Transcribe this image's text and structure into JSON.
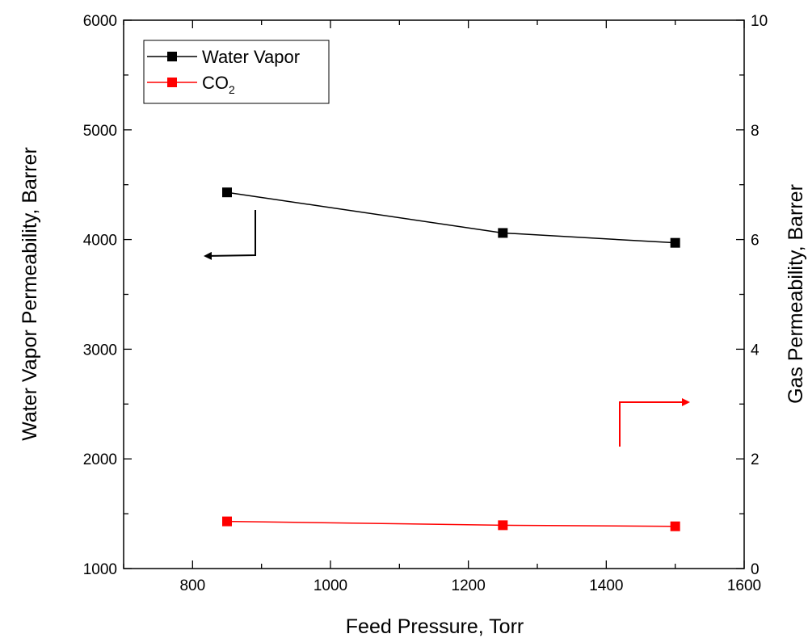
{
  "chart_data": {
    "type": "line",
    "xlabel": "Feed Pressure, Torr",
    "ylabel_left": "Water Vapor Permeability, Barrer",
    "ylabel_right": "Gas Permeability, Barrer",
    "xlim": [
      700,
      1600
    ],
    "ylim_left": [
      1000,
      6000
    ],
    "ylim_right": [
      0,
      10
    ],
    "x_ticks": [
      800,
      1000,
      1200,
      1400,
      1600
    ],
    "y_left_ticks": [
      1000,
      2000,
      3000,
      4000,
      5000,
      6000
    ],
    "y_right_ticks": [
      0,
      2,
      4,
      6,
      8,
      10
    ],
    "grid": false,
    "legend_position": "top-left",
    "series": [
      {
        "name": "Water Vapor",
        "axis": "left",
        "color": "#000000",
        "marker": "square",
        "x": [
          850,
          1250,
          1500
        ],
        "y": [
          4430,
          4060,
          3970
        ]
      },
      {
        "name": "CO",
        "name_sub": "2",
        "axis": "right",
        "color": "#ff0000",
        "marker": "square",
        "x": [
          850,
          1250,
          1500
        ],
        "y": [
          0.86,
          0.79,
          0.77
        ]
      }
    ],
    "annotations": [
      {
        "type": "arrow",
        "points_to": "left-axis",
        "color": "#000000"
      },
      {
        "type": "arrow",
        "points_to": "right-axis",
        "color": "#ff0000"
      }
    ]
  }
}
